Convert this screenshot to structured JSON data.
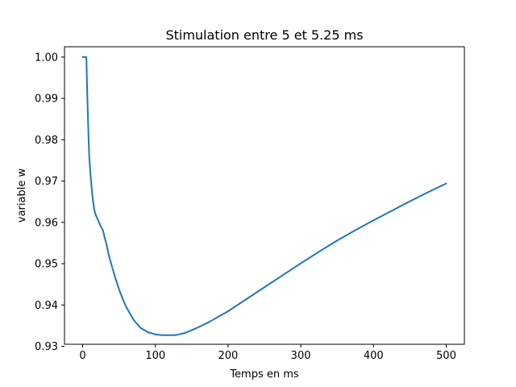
{
  "chart_data": {
    "type": "line",
    "title": "Stimulation entre 5 et 5.25 ms",
    "xlabel": "Temps en ms",
    "ylabel": "variable w",
    "xlim": [
      -25,
      525
    ],
    "ylim": [
      0.9305,
      1.0025
    ],
    "xticks": [
      0,
      100,
      200,
      300,
      400,
      500
    ],
    "xtick_labels": [
      "0",
      "100",
      "200",
      "300",
      "400",
      "500"
    ],
    "yticks": [
      0.93,
      0.94,
      0.95,
      0.96,
      0.97,
      0.98,
      0.99,
      1.0
    ],
    "ytick_labels": [
      "0.93",
      "0.94",
      "0.95",
      "0.96",
      "0.97",
      "0.98",
      "0.99",
      "1.00"
    ],
    "grid": false,
    "series": [
      {
        "name": "w",
        "color": "#1f77b4",
        "x": [
          0,
          5,
          5.25,
          6,
          7,
          8,
          9,
          10,
          11,
          12,
          14,
          16,
          18,
          20,
          22,
          25,
          28,
          30,
          33,
          36,
          40,
          45,
          50,
          55,
          60,
          70,
          80,
          90,
          100,
          110,
          120,
          125,
          130,
          140,
          150,
          160,
          175,
          200,
          225,
          250,
          275,
          300,
          325,
          350,
          375,
          400,
          425,
          450,
          475,
          500
        ],
        "y": [
          1.0,
          1.0,
          0.999,
          0.993,
          0.987,
          0.981,
          0.976,
          0.9735,
          0.971,
          0.969,
          0.9655,
          0.963,
          0.9618,
          0.961,
          0.9602,
          0.959,
          0.958,
          0.9565,
          0.9545,
          0.952,
          0.9495,
          0.9465,
          0.9438,
          0.9415,
          0.9395,
          0.9364,
          0.9344,
          0.9334,
          0.9329,
          0.9327,
          0.9327,
          0.9327,
          0.9328,
          0.9332,
          0.9339,
          0.9347,
          0.936,
          0.9385,
          0.9414,
          0.9443,
          0.9472,
          0.9501,
          0.9529,
          0.9556,
          0.9581,
          0.9605,
          0.9628,
          0.9651,
          0.9673,
          0.9694
        ]
      }
    ]
  }
}
